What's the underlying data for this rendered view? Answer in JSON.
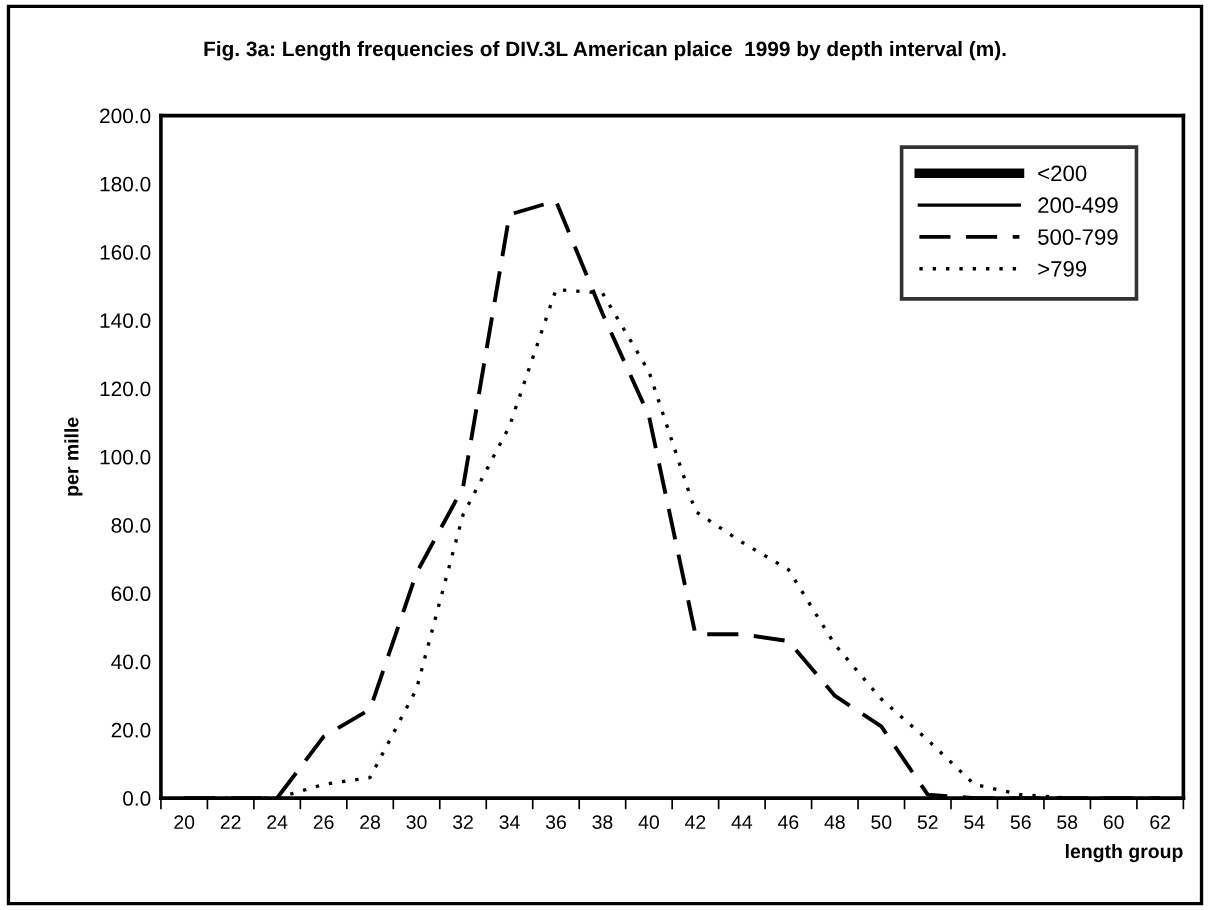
{
  "chart_data": {
    "type": "line",
    "title": "Fig. 3a: Length frequencies of DIV.3L American plaice  1999 by depth interval (m).",
    "xlabel": "length group",
    "ylabel": "per mille",
    "categories": [
      "20",
      "22",
      "24",
      "26",
      "28",
      "30",
      "32",
      "34",
      "36",
      "38",
      "40",
      "42",
      "44",
      "46",
      "48",
      "50",
      "52",
      "54",
      "56",
      "58",
      "60",
      "62"
    ],
    "series": [
      {
        "name": "<200",
        "color": "#000000",
        "line_style": "solid",
        "values": [
          null,
          null,
          null,
          null,
          null,
          null,
          null,
          null,
          null,
          null,
          null,
          null,
          null,
          null,
          null,
          null,
          null,
          null,
          null,
          null,
          null,
          null
        ]
      },
      {
        "name": "200-499",
        "color": "#000000",
        "line_style": "solid",
        "values": [
          null,
          null,
          null,
          null,
          null,
          null,
          null,
          null,
          null,
          null,
          null,
          null,
          null,
          null,
          null,
          null,
          null,
          null,
          null,
          null,
          null,
          null
        ]
      },
      {
        "name": "500-799",
        "color": "#000000",
        "line_style": "dashed",
        "values": [
          0,
          0,
          0,
          18,
          26,
          66,
          91,
          171,
          175,
          142,
          112,
          48,
          48,
          46,
          30,
          21,
          1,
          0,
          0,
          0,
          0,
          0
        ]
      },
      {
        "name": ">799",
        "color": "#000000",
        "line_style": "dotted",
        "values": [
          0,
          0,
          0,
          4,
          6,
          32,
          83,
          109,
          149,
          148,
          125,
          84,
          75,
          67,
          45,
          29,
          17,
          4,
          1,
          0,
          0,
          0
        ]
      }
    ],
    "ylim": [
      0,
      200
    ],
    "yticks": [
      {
        "value": 0,
        "label": "0.0"
      },
      {
        "value": 20,
        "label": "20.0"
      },
      {
        "value": 40,
        "label": "40.0"
      },
      {
        "value": 60,
        "label": "60.0"
      },
      {
        "value": 80,
        "label": "80.0"
      },
      {
        "value": 100,
        "label": "100.0"
      },
      {
        "value": 120,
        "label": "120.0"
      },
      {
        "value": 140,
        "label": "140.0"
      },
      {
        "value": 160,
        "label": "160.0"
      },
      {
        "value": 180,
        "label": "180.0"
      },
      {
        "value": 200,
        "label": "200.0"
      }
    ],
    "grid": false,
    "legend": "top right",
    "marker": "none"
  }
}
